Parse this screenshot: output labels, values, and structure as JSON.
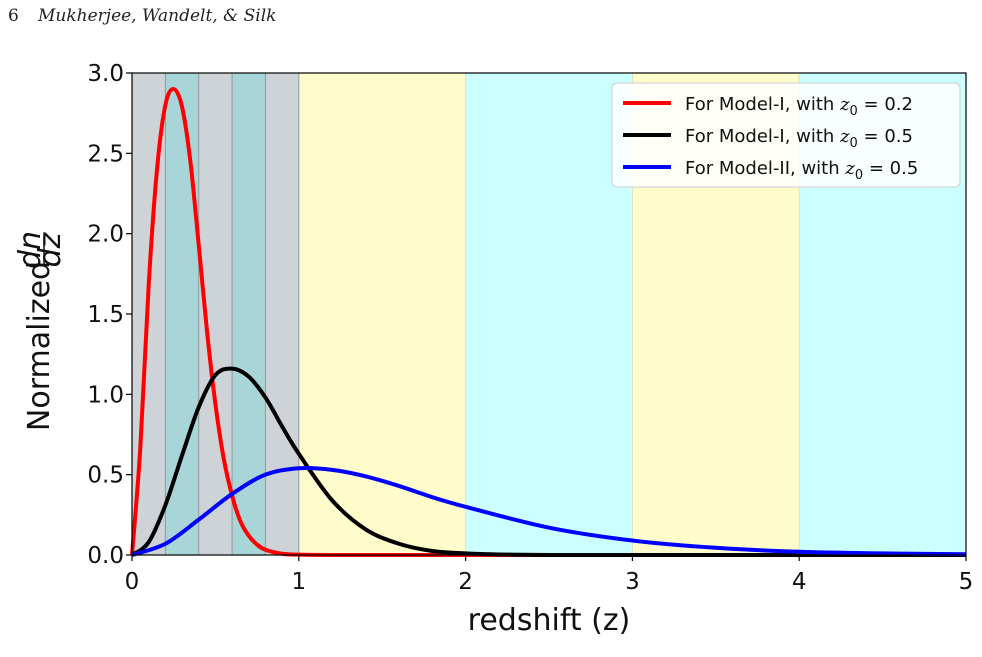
{
  "header": {
    "page_number": "6",
    "authors": "Mukherjee, Wandelt, & Silk"
  },
  "chart_data": {
    "type": "line",
    "xlabel": "redshift (z)",
    "ylabel": "Normalized",
    "ylabel_fraction": {
      "numerator": "dn",
      "denominator": "dz"
    },
    "xlim": [
      0,
      5
    ],
    "ylim": [
      0,
      3.0
    ],
    "x_ticks": [
      0,
      1,
      2,
      3,
      4,
      5
    ],
    "y_ticks": [
      "0.0",
      "0.5",
      "1.0",
      "1.5",
      "2.0",
      "2.5",
      "3.0"
    ],
    "grid": false,
    "legend_position": "top-right",
    "background_bands": [
      {
        "from": 0.0,
        "to": 0.2,
        "color": "#cdd3d6"
      },
      {
        "from": 0.2,
        "to": 0.4,
        "color": "#a8d6d8"
      },
      {
        "from": 0.4,
        "to": 0.6,
        "color": "#cdd3d6"
      },
      {
        "from": 0.6,
        "to": 0.8,
        "color": "#a8d6d8"
      },
      {
        "from": 0.8,
        "to": 1.0,
        "color": "#cdd3d6"
      },
      {
        "from": 1.0,
        "to": 2.0,
        "color": "#fffccc"
      },
      {
        "from": 2.0,
        "to": 3.0,
        "color": "#ccffff"
      },
      {
        "from": 3.0,
        "to": 4.0,
        "color": "#fffccc"
      },
      {
        "from": 4.0,
        "to": 5.0,
        "color": "#ccffff"
      }
    ],
    "series": [
      {
        "name": "For Model-I, with z0 = 0.2",
        "legend_prefix": "For Model-I, with ",
        "legend_var": "z",
        "legend_sub": "0",
        "legend_value": " = 0.2",
        "color": "#ff0000",
        "x": [
          0,
          0.05,
          0.1,
          0.15,
          0.2,
          0.25,
          0.3,
          0.35,
          0.4,
          0.45,
          0.5,
          0.55,
          0.6,
          0.65,
          0.7,
          0.75,
          0.8,
          0.9,
          1.0,
          1.2,
          1.5,
          2.0,
          3.0,
          4.0,
          5.0
        ],
        "y": [
          0,
          0.67,
          1.68,
          2.4,
          2.8,
          2.9,
          2.79,
          2.45,
          1.93,
          1.39,
          0.94,
          0.6,
          0.37,
          0.21,
          0.12,
          0.064,
          0.033,
          0.008,
          0.002,
          0,
          0,
          0,
          0,
          0,
          0
        ]
      },
      {
        "name": "For Model-I, with z0 = 0.5",
        "legend_prefix": "For Model-I, with ",
        "legend_var": "z",
        "legend_sub": "0",
        "legend_value": " = 0.5",
        "color": "#000000",
        "x": [
          0,
          0.1,
          0.2,
          0.3,
          0.4,
          0.5,
          0.6,
          0.7,
          0.8,
          0.9,
          1.0,
          1.2,
          1.4,
          1.6,
          1.8,
          2.0,
          2.2,
          2.5,
          3.0,
          4.0,
          5.0
        ],
        "y": [
          0,
          0.08,
          0.31,
          0.62,
          0.92,
          1.12,
          1.16,
          1.11,
          0.98,
          0.8,
          0.63,
          0.34,
          0.16,
          0.07,
          0.025,
          0.01,
          0.003,
          0,
          0,
          0,
          0
        ]
      },
      {
        "name": "For Model-II, with z0 = 0.5",
        "legend_prefix": "For Model-II, with ",
        "legend_var": "z",
        "legend_sub": "0",
        "legend_value": " = 0.5",
        "color": "#0000ff",
        "x": [
          0,
          0.2,
          0.4,
          0.6,
          0.8,
          1.0,
          1.2,
          1.4,
          1.6,
          1.8,
          2.0,
          2.5,
          3.0,
          3.5,
          4.0,
          4.5,
          5.0
        ],
        "y": [
          0,
          0.07,
          0.22,
          0.38,
          0.5,
          0.54,
          0.53,
          0.49,
          0.43,
          0.36,
          0.3,
          0.17,
          0.09,
          0.045,
          0.02,
          0.01,
          0.005
        ]
      }
    ]
  }
}
